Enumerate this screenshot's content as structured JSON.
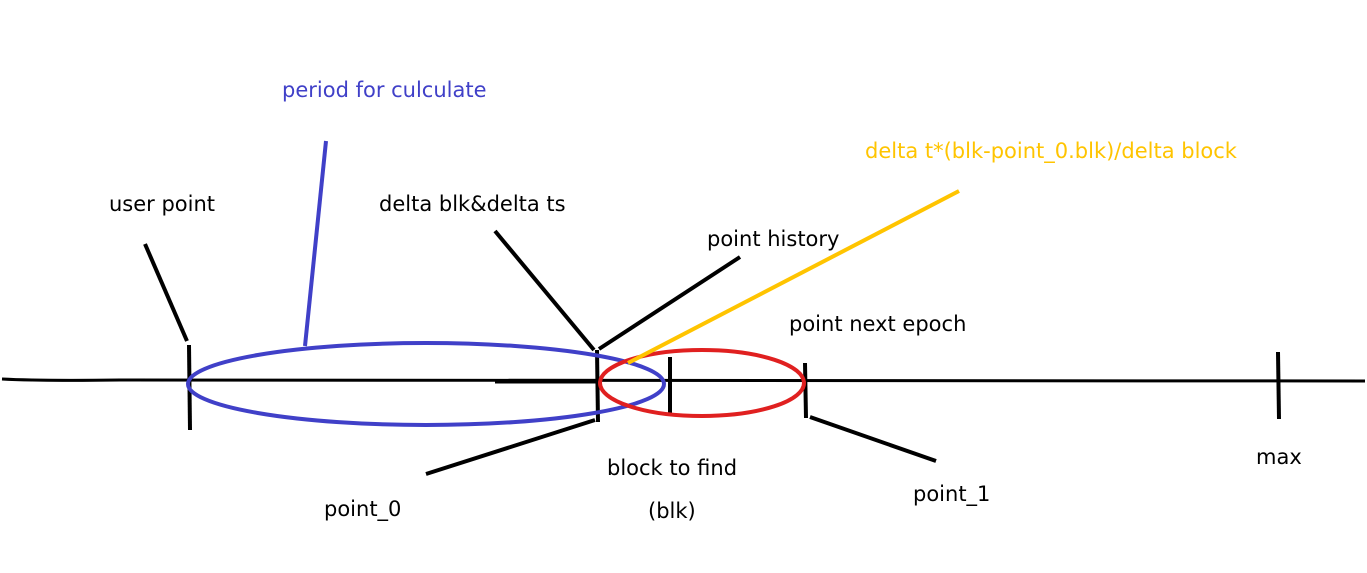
{
  "colors": {
    "ink": "#000000",
    "period": "#4040c8",
    "formula": "#ffc400",
    "epoch": "#e02020"
  },
  "labels": {
    "period": "period for culculate",
    "formula": "delta t*(blk-point_0.blk)/delta block",
    "user_point": "user point",
    "delta": "delta blk&delta ts",
    "point_history": "point history",
    "point_next_epoch": "point next epoch",
    "point_0": "point_0",
    "block_to_find": "block to find",
    "blk": "(blk)",
    "point_1": "point_1",
    "max": "max"
  }
}
